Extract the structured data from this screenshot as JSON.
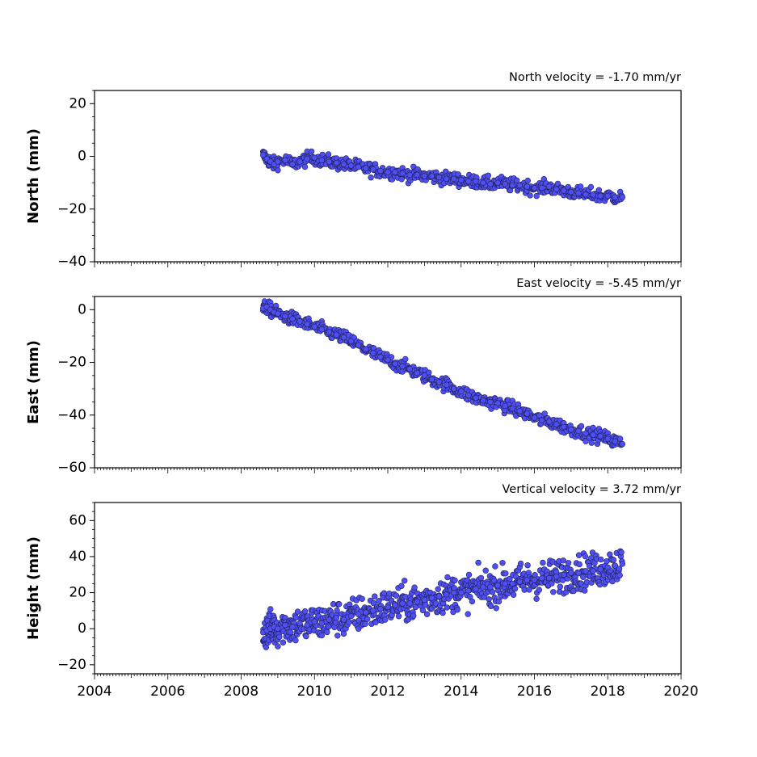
{
  "chart_data": [
    {
      "type": "scatter",
      "title": "North velocity = -1.70 mm/yr",
      "ylabel": "North (mm)",
      "xlabel": "",
      "xlim": [
        2004,
        2020
      ],
      "ylim": [
        -40,
        25
      ],
      "yticks": [
        20,
        0,
        -20,
        -40
      ],
      "ytick_labels": [
        "20",
        "0",
        "−20",
        "−40"
      ],
      "marker_color": "#4f4ff5",
      "series": [
        {
          "x": [
            2008.6,
            2008.7,
            2008.8,
            2008.9,
            2009.0,
            2009.2,
            2009.4,
            2009.6,
            2009.8,
            2010.0,
            2010.2,
            2010.4,
            2010.6,
            2010.8,
            2011.0,
            2011.2,
            2011.4,
            2011.6,
            2011.8,
            2012.0,
            2012.2,
            2012.4,
            2012.6,
            2012.8,
            2013.0,
            2013.2,
            2013.4,
            2013.6,
            2013.8,
            2014.0,
            2014.2,
            2014.4,
            2014.6,
            2014.8,
            2015.0,
            2015.2,
            2015.4,
            2015.6,
            2015.8,
            2016.0,
            2016.2,
            2016.4,
            2016.6,
            2016.8,
            2017.0,
            2017.2,
            2017.4,
            2017.6,
            2017.8,
            2018.0,
            2018.2,
            2018.4
          ],
          "y": [
            0.5,
            -1,
            -2,
            -3,
            -2,
            -1.5,
            -3,
            -2,
            -1,
            -0.5,
            -1.5,
            -2,
            -2.5,
            -3,
            -3.5,
            -4,
            -4.5,
            -5,
            -5.5,
            -6,
            -6,
            -6.5,
            -7,
            -7,
            -7.5,
            -7.5,
            -8,
            -8.5,
            -8.5,
            -9,
            -9.5,
            -9.5,
            -10,
            -10.5,
            -10,
            -10.5,
            -11,
            -11,
            -11.5,
            -12,
            -12,
            -11.5,
            -12.5,
            -13,
            -13.5,
            -14,
            -14.5,
            -14.5,
            -15,
            -15,
            -15.5,
            -15.5
          ]
        }
      ]
    },
    {
      "type": "scatter",
      "title": "East velocity = -5.45 mm/yr",
      "ylabel": "East (mm)",
      "xlabel": "",
      "xlim": [
        2004,
        2020
      ],
      "ylim": [
        -60,
        5
      ],
      "yticks": [
        0,
        -20,
        -40,
        -60
      ],
      "ytick_labels": [
        "0",
        "−20",
        "−40",
        "−60"
      ],
      "marker_color": "#4f4ff5",
      "series": [
        {
          "x": [
            2008.6,
            2008.7,
            2008.8,
            2008.9,
            2009.0,
            2009.2,
            2009.4,
            2009.6,
            2009.8,
            2010.0,
            2010.2,
            2010.4,
            2010.6,
            2010.8,
            2011.0,
            2011.2,
            2011.4,
            2011.6,
            2011.8,
            2012.0,
            2012.2,
            2012.4,
            2012.6,
            2012.8,
            2013.0,
            2013.2,
            2013.4,
            2013.6,
            2013.8,
            2014.0,
            2014.2,
            2014.4,
            2014.6,
            2014.8,
            2015.0,
            2015.2,
            2015.4,
            2015.6,
            2015.8,
            2016.0,
            2016.2,
            2016.4,
            2016.6,
            2016.8,
            2017.0,
            2017.2,
            2017.4,
            2017.6,
            2017.8,
            2018.0,
            2018.2,
            2018.4
          ],
          "y": [
            0.5,
            1,
            0,
            -1,
            -1.5,
            -2.5,
            -3.5,
            -4.5,
            -5.5,
            -6.5,
            -7.5,
            -8.5,
            -9.5,
            -10.5,
            -12,
            -13.5,
            -15,
            -16.5,
            -18,
            -19,
            -20.5,
            -21.5,
            -22.5,
            -24,
            -25,
            -26.5,
            -27.5,
            -28.5,
            -30,
            -31,
            -32.5,
            -33.5,
            -34.5,
            -35,
            -35.5,
            -36.5,
            -37.5,
            -38.5,
            -39.5,
            -41,
            -42,
            -42.5,
            -43.5,
            -44.5,
            -45.5,
            -46,
            -47,
            -47.5,
            -48,
            -49,
            -50,
            -51
          ]
        }
      ]
    },
    {
      "type": "scatter",
      "title": "Vertical velocity = 3.72 mm/yr",
      "ylabel": "Height (mm)",
      "xlabel": "",
      "xlim": [
        2004,
        2020
      ],
      "ylim": [
        -25,
        70
      ],
      "yticks": [
        60,
        40,
        20,
        0,
        -20
      ],
      "ytick_labels": [
        "60",
        "40",
        "20",
        "0",
        "−20"
      ],
      "xticks": [
        2004,
        2006,
        2008,
        2010,
        2012,
        2014,
        2016,
        2018,
        2020
      ],
      "xtick_labels": [
        "2004",
        "2006",
        "2008",
        "2010",
        "2012",
        "2014",
        "2016",
        "2018",
        "2020"
      ],
      "marker_color": "#4f4ff5",
      "series": [
        {
          "x": [
            2008.6,
            2008.7,
            2008.8,
            2008.9,
            2009.0,
            2009.2,
            2009.4,
            2009.6,
            2009.8,
            2010.0,
            2010.2,
            2010.4,
            2010.6,
            2010.8,
            2011.0,
            2011.2,
            2011.4,
            2011.6,
            2011.8,
            2012.0,
            2012.2,
            2012.4,
            2012.6,
            2012.8,
            2013.0,
            2013.2,
            2013.4,
            2013.6,
            2013.8,
            2014.0,
            2014.2,
            2014.4,
            2014.6,
            2014.8,
            2015.0,
            2015.2,
            2015.4,
            2015.6,
            2015.8,
            2016.0,
            2016.2,
            2016.4,
            2016.6,
            2016.8,
            2017.0,
            2017.2,
            2017.4,
            2017.6,
            2017.8,
            2018.0,
            2018.2,
            2018.4
          ],
          "y": [
            -2,
            -1,
            0,
            1,
            0,
            2,
            1,
            3,
            2,
            4,
            3,
            5,
            6,
            5,
            7,
            8,
            9,
            10,
            11,
            12,
            13,
            14,
            14,
            15,
            16,
            17,
            18,
            19,
            20,
            20,
            21,
            22,
            23,
            23,
            24,
            25,
            25,
            26,
            27,
            27,
            28,
            28,
            29,
            30,
            31,
            31,
            32,
            32,
            33,
            34,
            35,
            36
          ]
        }
      ]
    }
  ]
}
